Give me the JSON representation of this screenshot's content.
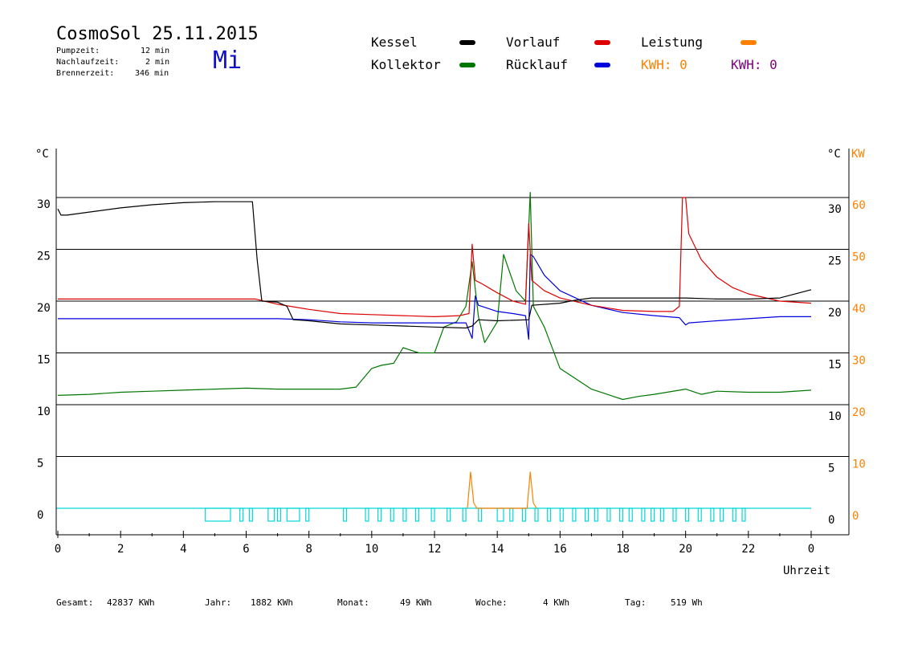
{
  "header": {
    "title": "CosmoSol 25.11.2015",
    "weekday": "Mi",
    "stats": [
      {
        "label": "Pumpzeit:",
        "value": "12 min"
      },
      {
        "label": "Nachlaufzeit:",
        "value": "2 min"
      },
      {
        "label": "Brennerzeit:",
        "value": "346 min"
      }
    ]
  },
  "legend": {
    "items": [
      {
        "label": "Kessel",
        "color": "#000000"
      },
      {
        "label": "Vorlauf",
        "color": "#dd0000"
      },
      {
        "label": "Leistung",
        "color": "#ff8000"
      },
      {
        "label": "Kollektor",
        "color": "#007700"
      },
      {
        "label": "Rücklauf",
        "color": "#0000dd"
      }
    ],
    "kwh": [
      {
        "text": "KWH: 0",
        "color": "#ff8000"
      },
      {
        "text": "KWH: 0",
        "color": "#800080"
      }
    ]
  },
  "footer": [
    {
      "label": "Gesamt:",
      "value": "42837 KWh"
    },
    {
      "label": "Jahr:",
      "value": "1882 KWh"
    },
    {
      "label": "Monat:",
      "value": "49 KWh"
    },
    {
      "label": "Woche:",
      "value": "4 KWh"
    },
    {
      "label": "Tag:",
      "value": "519 Wh"
    }
  ],
  "chart_data": {
    "type": "line",
    "xlabel": "Uhrzeit",
    "y_unit_left": "°C",
    "y_unit_right": "°C",
    "y2_unit": "KW",
    "x_ticks": [
      "0",
      "2",
      "4",
      "6",
      "8",
      "10",
      "12",
      "14",
      "16",
      "18",
      "20",
      "22",
      "0"
    ],
    "y_ticks_left": [
      "30",
      "25",
      "20",
      "15",
      "10",
      "5",
      "0"
    ],
    "y_ticks_right": [
      "30",
      "25",
      "20",
      "15",
      "10",
      "5",
      "0"
    ],
    "y2_ticks": [
      "60",
      "50",
      "40",
      "30",
      "20",
      "10",
      "0"
    ],
    "xlim": [
      0,
      24
    ],
    "ylim": [
      0,
      30
    ],
    "grid": true,
    "series": [
      {
        "name": "Kessel",
        "color": "#000000",
        "x": [
          0,
          0.1,
          0.3,
          1,
          2,
          3,
          4,
          5,
          6,
          6.2,
          6.35,
          6.5,
          7,
          7.3,
          7.5,
          8,
          9,
          10,
          11,
          12,
          13,
          13.2,
          13.4,
          14,
          15,
          15.1,
          16,
          16.5,
          17,
          18,
          19,
          20,
          21,
          22,
          23,
          24
        ],
        "y": [
          28.9,
          28.3,
          28.3,
          28.6,
          29.0,
          29.3,
          29.5,
          29.6,
          29.6,
          29.6,
          24,
          20.0,
          19.9,
          19.5,
          18.2,
          18.1,
          17.8,
          17.7,
          17.6,
          17.5,
          17.4,
          17.6,
          18.2,
          18.1,
          18.2,
          19.6,
          19.8,
          20.1,
          20.3,
          20.3,
          20.3,
          20.3,
          20.2,
          20.2,
          20.3,
          21.1
        ]
      },
      {
        "name": "Vorlauf",
        "color": "#dd0000",
        "x": [
          0,
          2,
          4,
          6,
          6.3,
          7,
          8,
          9,
          10,
          11,
          12,
          12.8,
          13.1,
          13.2,
          13.3,
          13.5,
          14,
          14.5,
          14.9,
          15.0,
          15.1,
          15.5,
          16,
          17,
          18,
          19,
          19.6,
          19.8,
          19.9,
          20.0,
          20.1,
          20.5,
          21,
          21.5,
          22,
          23,
          24
        ],
        "y": [
          20.2,
          20.2,
          20.2,
          20.2,
          20.2,
          19.7,
          19.2,
          18.8,
          18.7,
          18.6,
          18.5,
          18.6,
          18.8,
          25.5,
          22.0,
          21.7,
          20.8,
          20.0,
          19.7,
          27.5,
          22.0,
          21.0,
          20.3,
          19.6,
          19.1,
          19.0,
          19.0,
          19.5,
          30.0,
          30.0,
          26.5,
          24.0,
          22.3,
          21.3,
          20.7,
          20.0,
          19.8
        ]
      },
      {
        "name": "Rücklauf",
        "color": "#0000dd",
        "x": [
          0,
          2,
          4,
          6,
          7,
          8,
          9,
          10,
          11,
          12,
          13,
          13.2,
          13.3,
          13.4,
          13.6,
          14,
          14.5,
          14.9,
          15.0,
          15.05,
          15.15,
          15.5,
          16,
          17,
          18,
          19,
          19.8,
          20.0,
          20.1,
          21,
          22,
          23,
          24
        ],
        "y": [
          18.3,
          18.3,
          18.3,
          18.3,
          18.3,
          18.2,
          18.0,
          17.9,
          17.9,
          17.9,
          17.9,
          16.4,
          20.5,
          19.6,
          19.4,
          19.0,
          18.8,
          18.6,
          16.3,
          24.5,
          24.3,
          22.5,
          21.0,
          19.6,
          18.9,
          18.6,
          18.4,
          17.7,
          17.9,
          18.1,
          18.3,
          18.5,
          18.5
        ]
      },
      {
        "name": "Kollektor",
        "color": "#007700",
        "x": [
          0,
          1,
          2,
          3,
          4,
          5,
          6,
          7,
          8,
          9,
          9.5,
          10,
          10.3,
          10.7,
          11,
          11.5,
          12,
          12.3,
          12.7,
          13.0,
          13.2,
          13.4,
          13.6,
          14,
          14.2,
          14.6,
          14.9,
          15.05,
          15.15,
          15.5,
          16,
          16.5,
          17,
          17.5,
          18,
          18.5,
          19,
          20,
          20.5,
          21,
          22,
          23,
          24
        ],
        "y": [
          10.9,
          11.0,
          11.2,
          11.3,
          11.4,
          11.5,
          11.6,
          11.5,
          11.5,
          11.5,
          11.7,
          13.5,
          13.8,
          14.0,
          15.5,
          15.0,
          15.0,
          17.5,
          18.0,
          19.5,
          23.8,
          18.5,
          16.0,
          18.0,
          24.5,
          21.0,
          20.0,
          30.5,
          19.5,
          17.5,
          13.5,
          12.5,
          11.5,
          11.0,
          10.5,
          10.8,
          11.0,
          11.5,
          11.0,
          11.3,
          11.2,
          11.2,
          11.4
        ]
      },
      {
        "name": "Leistung",
        "color": "#ff8000",
        "x": [
          13.05,
          13.15,
          13.25,
          13.35,
          14.95,
          15.05,
          15.15,
          15.25
        ],
        "y": [
          0,
          3.5,
          0.5,
          0,
          0,
          3.5,
          0.5,
          0
        ]
      }
    ],
    "pump_intervals": [
      [
        4.7,
        5.5
      ],
      [
        5.8,
        5.9
      ],
      [
        6.1,
        6.2
      ],
      [
        6.7,
        6.9
      ],
      [
        7.0,
        7.1
      ],
      [
        7.3,
        7.7
      ],
      [
        7.9,
        8.0
      ],
      [
        9.1,
        9.2
      ],
      [
        9.8,
        9.9
      ],
      [
        10.2,
        10.3
      ],
      [
        10.6,
        10.7
      ],
      [
        11.0,
        11.1
      ],
      [
        11.4,
        11.5
      ],
      [
        11.9,
        12.0
      ],
      [
        12.4,
        12.5
      ],
      [
        12.9,
        13.0
      ],
      [
        13.4,
        13.5
      ],
      [
        14.0,
        14.2
      ],
      [
        14.4,
        14.5
      ],
      [
        14.8,
        14.9
      ],
      [
        15.2,
        15.3
      ],
      [
        15.6,
        15.7
      ],
      [
        16.0,
        16.1
      ],
      [
        16.4,
        16.5
      ],
      [
        16.8,
        16.9
      ],
      [
        17.1,
        17.2
      ],
      [
        17.5,
        17.6
      ],
      [
        17.9,
        18.0
      ],
      [
        18.2,
        18.3
      ],
      [
        18.6,
        18.7
      ],
      [
        18.9,
        19.0
      ],
      [
        19.2,
        19.3
      ],
      [
        19.6,
        19.7
      ],
      [
        20.0,
        20.1
      ],
      [
        20.4,
        20.5
      ],
      [
        20.8,
        20.9
      ],
      [
        21.1,
        21.2
      ],
      [
        21.5,
        21.6
      ],
      [
        21.8,
        21.9
      ]
    ]
  }
}
